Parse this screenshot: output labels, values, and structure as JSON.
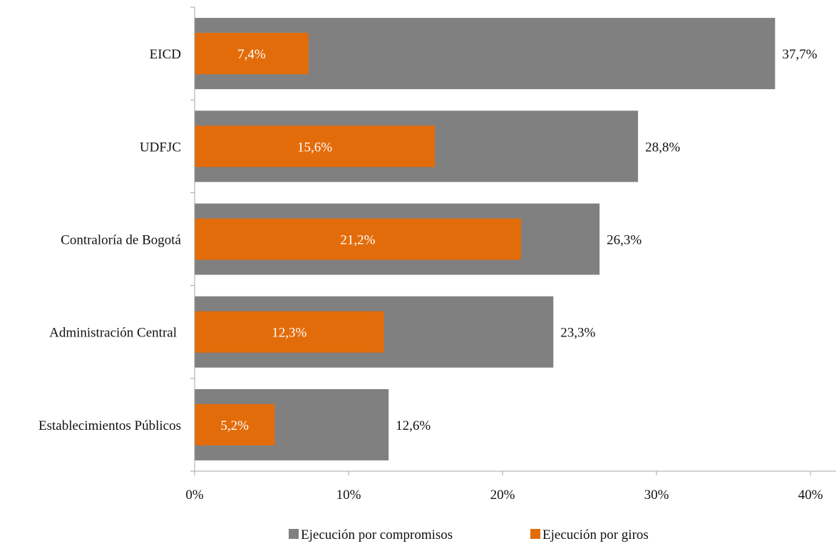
{
  "chart_data": {
    "type": "bar",
    "orientation": "horizontal",
    "categories": [
      "EICD",
      "UDFJC",
      "Contraloría de Bogotá",
      "Administración Central",
      "Establecimientos Públicos"
    ],
    "series": [
      {
        "name": "Ejecución por compromisos",
        "values": [
          37.7,
          28.8,
          26.3,
          23.3,
          12.6
        ],
        "labels": [
          "37,7%",
          "28,8%",
          "26,3%",
          "23,3%",
          "12,6%"
        ],
        "color": "#808080"
      },
      {
        "name": "Ejecución por giros",
        "values": [
          7.4,
          15.6,
          21.2,
          12.3,
          5.2
        ],
        "labels": [
          "7,4%",
          "15,6%",
          "21,2%",
          "12,3%",
          "5,2%"
        ],
        "color": "#E36C0A"
      }
    ],
    "xlim": [
      0,
      40
    ],
    "xticks": [
      0,
      10,
      20,
      30,
      40
    ],
    "xtick_labels": [
      "0%",
      "10%",
      "20%",
      "30%",
      "40%"
    ],
    "grid": false,
    "legend": "bottom"
  }
}
